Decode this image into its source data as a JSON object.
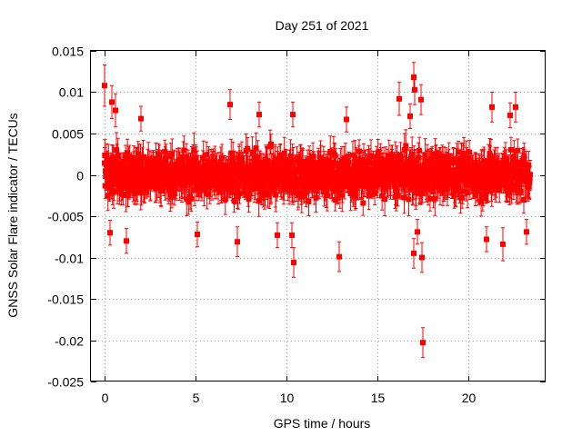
{
  "chart_data": {
    "type": "scatter",
    "title": "Day 251 of 2021",
    "xlabel": "GPS time / hours",
    "ylabel": "GNSS Solar Flare indicator / TECUs",
    "xlim": [
      -0.75,
      24.25
    ],
    "ylim": [
      -0.025,
      0.015
    ],
    "x_ticks": [
      0,
      5,
      10,
      15,
      20
    ],
    "x_tick_labels": [
      "0",
      "5",
      "10",
      "15",
      "20"
    ],
    "y_ticks": [
      -0.025,
      -0.02,
      -0.015,
      -0.01,
      -0.005,
      0,
      0.005,
      0.01,
      0.015
    ],
    "y_tick_labels": [
      "-0.025",
      "-0.02",
      "-0.015",
      "-0.01",
      "-0.005",
      "0",
      "0.005",
      "0.01",
      "0.015"
    ],
    "grid": true,
    "grid_style": "dotted",
    "marker": "square",
    "error_bars": true,
    "series_color": "#ff0000",
    "axis_color": "#000000",
    "grid_color": "#a0a0a0",
    "background_color": "#ffffff",
    "series": [
      {
        "name": "solar flare indicator",
        "description_note": "dense band of roughly 2800 points (every 30 s), values mostly between -0.007 and +0.007 TECU, each with ~0.0015 TECU error bars",
        "x_range": [
          0,
          23.4
        ],
        "typical_y_range": [
          -0.007,
          0.007
        ],
        "typical_error": 0.0015,
        "outliers": [
          {
            "x": 0.0,
            "y": 0.0108,
            "err": 0.0025
          },
          {
            "x": 0.4,
            "y": 0.0088,
            "err": 0.002
          },
          {
            "x": 0.6,
            "y": 0.0078,
            "err": 0.002
          },
          {
            "x": 0.3,
            "y": -0.007,
            "err": 0.0015
          },
          {
            "x": 1.2,
            "y": -0.008,
            "err": 0.0015
          },
          {
            "x": 2.0,
            "y": 0.0068,
            "err": 0.0015
          },
          {
            "x": 5.1,
            "y": -0.0072,
            "err": 0.0015
          },
          {
            "x": 6.9,
            "y": 0.0085,
            "err": 0.0018
          },
          {
            "x": 7.3,
            "y": -0.0081,
            "err": 0.0018
          },
          {
            "x": 8.5,
            "y": 0.0073,
            "err": 0.0015
          },
          {
            "x": 9.5,
            "y": -0.0073,
            "err": 0.0015
          },
          {
            "x": 10.3,
            "y": -0.0073,
            "err": 0.0015
          },
          {
            "x": 10.35,
            "y": 0.0073,
            "err": 0.0015
          },
          {
            "x": 10.4,
            "y": -0.0106,
            "err": 0.0018
          },
          {
            "x": 12.9,
            "y": -0.0099,
            "err": 0.0018
          },
          {
            "x": 13.3,
            "y": 0.0067,
            "err": 0.0015
          },
          {
            "x": 16.2,
            "y": 0.0092,
            "err": 0.002
          },
          {
            "x": 16.8,
            "y": 0.0071,
            "err": 0.0015
          },
          {
            "x": 17.0,
            "y": 0.0118,
            "err": 0.0018
          },
          {
            "x": 17.05,
            "y": 0.0103,
            "err": 0.0018
          },
          {
            "x": 17.0,
            "y": -0.0095,
            "err": 0.0018
          },
          {
            "x": 17.2,
            "y": -0.0069,
            "err": 0.0015
          },
          {
            "x": 17.4,
            "y": 0.0091,
            "err": 0.0018
          },
          {
            "x": 17.45,
            "y": -0.01,
            "err": 0.0018
          },
          {
            "x": 17.5,
            "y": -0.0203,
            "err": 0.0018
          },
          {
            "x": 21.0,
            "y": -0.0078,
            "err": 0.0015
          },
          {
            "x": 21.3,
            "y": 0.0082,
            "err": 0.0018
          },
          {
            "x": 21.9,
            "y": -0.0084,
            "err": 0.002
          },
          {
            "x": 22.3,
            "y": 0.0072,
            "err": 0.0015
          },
          {
            "x": 22.6,
            "y": 0.0082,
            "err": 0.0018
          },
          {
            "x": 23.2,
            "y": -0.0069,
            "err": 0.0015
          }
        ]
      }
    ]
  }
}
